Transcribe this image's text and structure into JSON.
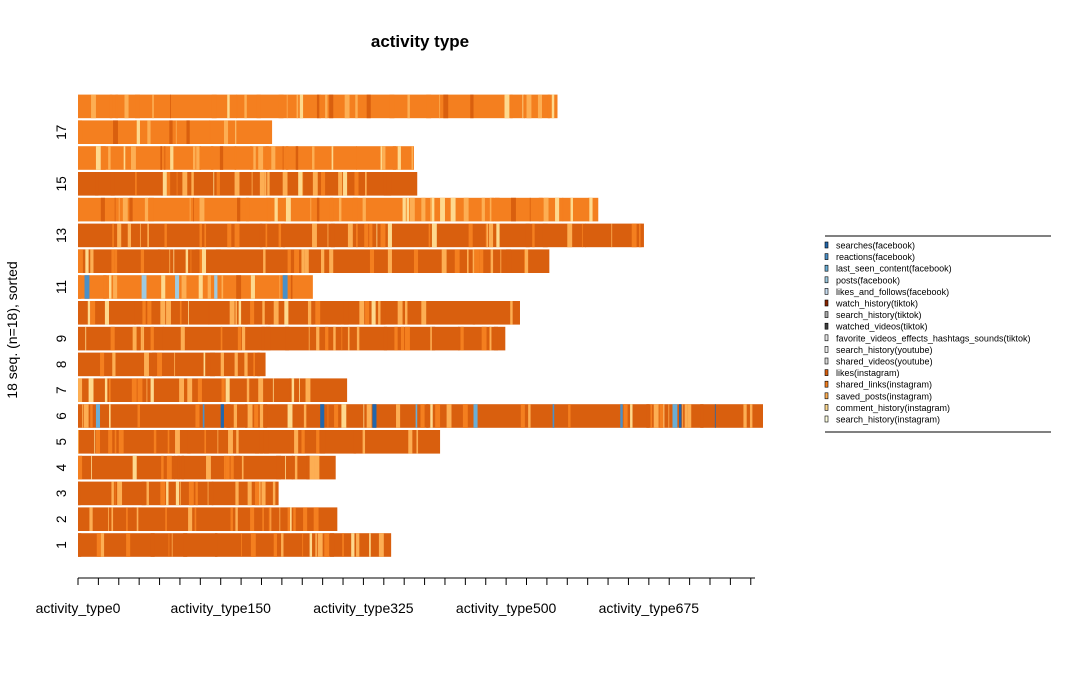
{
  "chart_data": {
    "type": "sequence-index-plot",
    "title": "activity type",
    "ylabel": "18 seq. (n=18), sorted",
    "xlabel": "",
    "x_tick_labels": [
      "activity_type0",
      "activity_type150",
      "activity_type325",
      "activity_type500",
      "activity_type675"
    ],
    "x_tick_positions": [
      0,
      175,
      350,
      525,
      700
    ],
    "xlim": [
      0,
      840
    ],
    "y_tick_labels": [
      "1",
      "2",
      "3",
      "4",
      "5",
      "6",
      "7",
      "8",
      "9",
      "11",
      "13",
      "15",
      "17"
    ],
    "y_tick_positions": [
      1,
      2,
      3,
      4,
      5,
      6,
      7,
      8,
      9,
      11,
      13,
      15,
      17
    ],
    "states": [
      {
        "name": "searches(facebook)",
        "color": "#2166ac"
      },
      {
        "name": "reactions(facebook)",
        "color": "#4a90c8"
      },
      {
        "name": "last_seen_content(facebook)",
        "color": "#6aaed6"
      },
      {
        "name": "posts(facebook)",
        "color": "#9ecae1"
      },
      {
        "name": "likes_and_follows(facebook)",
        "color": "#c6dbef"
      },
      {
        "name": "watch_history(tiktok)",
        "color": "#8b2500"
      },
      {
        "name": "search_history(tiktok)",
        "color": "#a9a9a9"
      },
      {
        "name": "watched_videos(tiktok)",
        "color": "#404040"
      },
      {
        "name": "favorite_videos_effects_hashtags_sounds(tiktok)",
        "color": "#e5e5e5"
      },
      {
        "name": "search_history(youtube)",
        "color": "#f0f0f0"
      },
      {
        "name": "shared_videos(youtube)",
        "color": "#d9d9d9"
      },
      {
        "name": "likes(instagram)",
        "color": "#d95f0e"
      },
      {
        "name": "shared_links(instagram)",
        "color": "#f47f1f"
      },
      {
        "name": "saved_posts(instagram)",
        "color": "#fdae53"
      },
      {
        "name": "comment_history(instagram)",
        "color": "#fed98e"
      },
      {
        "name": "search_history(instagram)",
        "color": "#ffffe0"
      }
    ],
    "sequences": [
      {
        "row": 1,
        "length": 384,
        "dominant": "likes(instagram)"
      },
      {
        "row": 2,
        "length": 318,
        "dominant": "likes(instagram)"
      },
      {
        "row": 3,
        "length": 246,
        "dominant": "likes(instagram)"
      },
      {
        "row": 4,
        "length": 316,
        "dominant": "likes(instagram)"
      },
      {
        "row": 5,
        "length": 444,
        "dominant": "likes(instagram)"
      },
      {
        "row": 6,
        "length": 840,
        "dominant": "likes(instagram)"
      },
      {
        "row": 7,
        "length": 330,
        "dominant": "likes(instagram)"
      },
      {
        "row": 8,
        "length": 230,
        "dominant": "likes(instagram)"
      },
      {
        "row": 9,
        "length": 524,
        "dominant": "likes(instagram)"
      },
      {
        "row": 10,
        "length": 542,
        "dominant": "likes(instagram)"
      },
      {
        "row": 11,
        "length": 288,
        "dominant": "shared_links(instagram)"
      },
      {
        "row": 12,
        "length": 578,
        "dominant": "likes(instagram)"
      },
      {
        "row": 13,
        "length": 694,
        "dominant": "likes(instagram)"
      },
      {
        "row": 14,
        "length": 638,
        "dominant": "shared_links(instagram)"
      },
      {
        "row": 15,
        "length": 416,
        "dominant": "likes(instagram)"
      },
      {
        "row": 16,
        "length": 412,
        "dominant": "shared_links(instagram)"
      },
      {
        "row": 17,
        "length": 238,
        "dominant": "shared_links(instagram)"
      },
      {
        "row": 18,
        "length": 588,
        "dominant": "shared_links(instagram)"
      }
    ]
  }
}
